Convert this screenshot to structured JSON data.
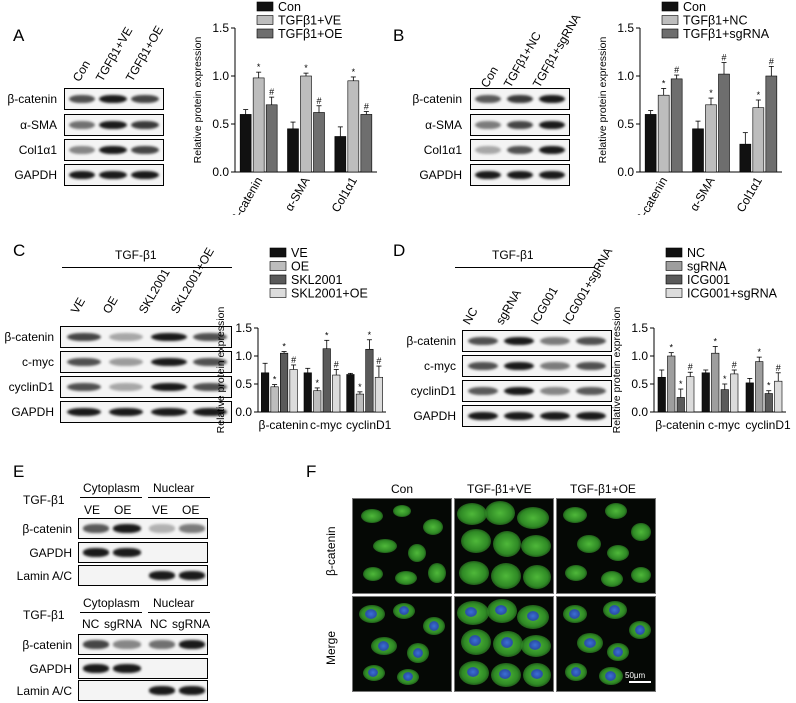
{
  "panels": {
    "A": {
      "letter": "A",
      "lanes": [
        "Con",
        "TGFβ1+VE",
        "TGFβ1+OE"
      ],
      "rows": [
        "β-catenin",
        "α-SMA",
        "Col1α1",
        "GAPDH"
      ]
    },
    "B": {
      "letter": "B",
      "lanes": [
        "Con",
        "TGFβ1+NC",
        "TGFβ1+sgRNA"
      ],
      "rows": [
        "β-catenin",
        "α-SMA",
        "Col1α1",
        "GAPDH"
      ]
    },
    "C": {
      "letter": "C",
      "group_label": "TGF-β1",
      "lanes": [
        "VE",
        "OE",
        "SKL2001",
        "SKL2001+OE"
      ],
      "rows": [
        "β-catenin",
        "c-myc",
        "cyclinD1",
        "GAPDH"
      ]
    },
    "D": {
      "letter": "D",
      "group_label": "TGF-β1",
      "lanes": [
        "NC",
        "sgRNA",
        "ICG001",
        "ICG001+sgRNA"
      ],
      "rows": [
        "β-catenin",
        "c-myc",
        "cyclinD1",
        "GAPDH"
      ]
    },
    "E": {
      "letter": "E",
      "treatment": "TGF-β1",
      "cytoplasm": "Cytoplasm",
      "nuclear": "Nuclear",
      "lanes_top": [
        "VE",
        "OE",
        "VE",
        "OE"
      ],
      "lanes_bottom": [
        "NC",
        "sgRNA",
        "NC",
        "sgRNA"
      ],
      "rows": [
        "β-catenin",
        "GAPDH",
        "Lamin A/C"
      ]
    },
    "F": {
      "letter": "F",
      "columns": [
        "Con",
        "TGF-β1+VE",
        "TGF-β1+OE"
      ],
      "rows": [
        "β-catenin",
        "Merge"
      ],
      "scale_bar": "50μm"
    }
  },
  "chart_data": [
    {
      "id": "A",
      "type": "bar",
      "categories": [
        "β-catenin",
        "α-SMA",
        "Col1α1"
      ],
      "series": [
        {
          "name": "Con",
          "values": [
            0.6,
            0.45,
            0.37
          ],
          "errors": [
            0.05,
            0.07,
            0.1
          ],
          "marks": [
            "",
            "",
            ""
          ],
          "color": "#111111"
        },
        {
          "name": "TGFβ1+VE",
          "values": [
            0.98,
            1.0,
            0.95
          ],
          "errors": [
            0.06,
            0.03,
            0.04
          ],
          "marks": [
            "*",
            "*",
            "*"
          ],
          "color": "#bdbdbd"
        },
        {
          "name": "TGFβ1+OE",
          "values": [
            0.7,
            0.62,
            0.6
          ],
          "errors": [
            0.08,
            0.07,
            0.03
          ],
          "marks": [
            "#",
            "#",
            "#"
          ],
          "color": "#6e6e6e"
        }
      ],
      "ylabel": "Relative protein expression",
      "ylim": [
        0,
        1.5
      ],
      "yticks": [
        "0.0",
        "0.5",
        "1.0",
        "1.5"
      ],
      "legend": "top"
    },
    {
      "id": "B",
      "type": "bar",
      "categories": [
        "β-catenin",
        "α-SMA",
        "Col1α1"
      ],
      "series": [
        {
          "name": "Con",
          "values": [
            0.6,
            0.45,
            0.29
          ],
          "errors": [
            0.04,
            0.08,
            0.12
          ],
          "marks": [
            "",
            "",
            ""
          ],
          "color": "#111111"
        },
        {
          "name": "TGFβ1+NC",
          "values": [
            0.8,
            0.7,
            0.67
          ],
          "errors": [
            0.07,
            0.07,
            0.08
          ],
          "marks": [
            "*",
            "*",
            "*"
          ],
          "color": "#bdbdbd"
        },
        {
          "name": "TGFβ1+sgRNA",
          "values": [
            0.97,
            1.02,
            1.0
          ],
          "errors": [
            0.04,
            0.12,
            0.1
          ],
          "marks": [
            "#",
            "#",
            "#"
          ],
          "color": "#6e6e6e"
        }
      ],
      "ylabel": "Relative protein expression",
      "ylim": [
        0,
        1.5
      ],
      "yticks": [
        "0.0",
        "0.5",
        "1.0",
        "1.5"
      ],
      "legend": "top"
    },
    {
      "id": "C",
      "type": "bar",
      "categories": [
        "β-catenin",
        "c-myc",
        "cyclinD1"
      ],
      "series": [
        {
          "name": "VE",
          "values": [
            0.7,
            0.7,
            0.67
          ],
          "errors": [
            0.17,
            0.08,
            0.02
          ],
          "marks": [
            "",
            "",
            ""
          ],
          "color": "#111111"
        },
        {
          "name": "OE",
          "values": [
            0.45,
            0.38,
            0.32
          ],
          "errors": [
            0.04,
            0.05,
            0.04
          ],
          "marks": [
            "*",
            "*",
            "*"
          ],
          "color": "#bdbdbd"
        },
        {
          "name": "SKL2001",
          "values": [
            1.05,
            1.13,
            1.12
          ],
          "errors": [
            0.03,
            0.15,
            0.17
          ],
          "marks": [
            "*",
            "*",
            "*"
          ],
          "color": "#5a5a5a"
        },
        {
          "name": "SKL2001+OE",
          "values": [
            0.76,
            0.66,
            0.62
          ],
          "errors": [
            0.08,
            0.1,
            0.2
          ],
          "marks": [
            "#",
            "#",
            "#"
          ],
          "color": "#dcdcdc"
        }
      ],
      "ylabel": "Relative protein expression",
      "ylim": [
        0,
        1.5
      ],
      "yticks": [
        "0.0",
        "0.5",
        "1.0",
        "1.5"
      ],
      "legend": "top"
    },
    {
      "id": "D",
      "type": "bar",
      "categories": [
        "β-catenin",
        "c-myc",
        "cyclinD1"
      ],
      "series": [
        {
          "name": "NC",
          "values": [
            0.62,
            0.7,
            0.52
          ],
          "errors": [
            0.13,
            0.05,
            0.08
          ],
          "marks": [
            "",
            "",
            ""
          ],
          "color": "#111111"
        },
        {
          "name": "sgRNA",
          "values": [
            1.0,
            1.05,
            0.9
          ],
          "errors": [
            0.06,
            0.12,
            0.08
          ],
          "marks": [
            "*",
            "*",
            "*"
          ],
          "color": "#9e9e9e"
        },
        {
          "name": "ICG001",
          "values": [
            0.26,
            0.4,
            0.33
          ],
          "errors": [
            0.15,
            0.1,
            0.05
          ],
          "marks": [
            "*",
            "*",
            "*"
          ],
          "color": "#5a5a5a"
        },
        {
          "name": "ICG001+sgRNA",
          "values": [
            0.63,
            0.68,
            0.55
          ],
          "errors": [
            0.08,
            0.07,
            0.15
          ],
          "marks": [
            "#",
            "#",
            "#"
          ],
          "color": "#dcdcdc"
        }
      ],
      "ylabel": "Relative protein expression",
      "ylim": [
        0,
        1.5
      ],
      "yticks": [
        "0.0",
        "0.5",
        "1.0",
        "1.5"
      ],
      "legend": "top"
    }
  ]
}
